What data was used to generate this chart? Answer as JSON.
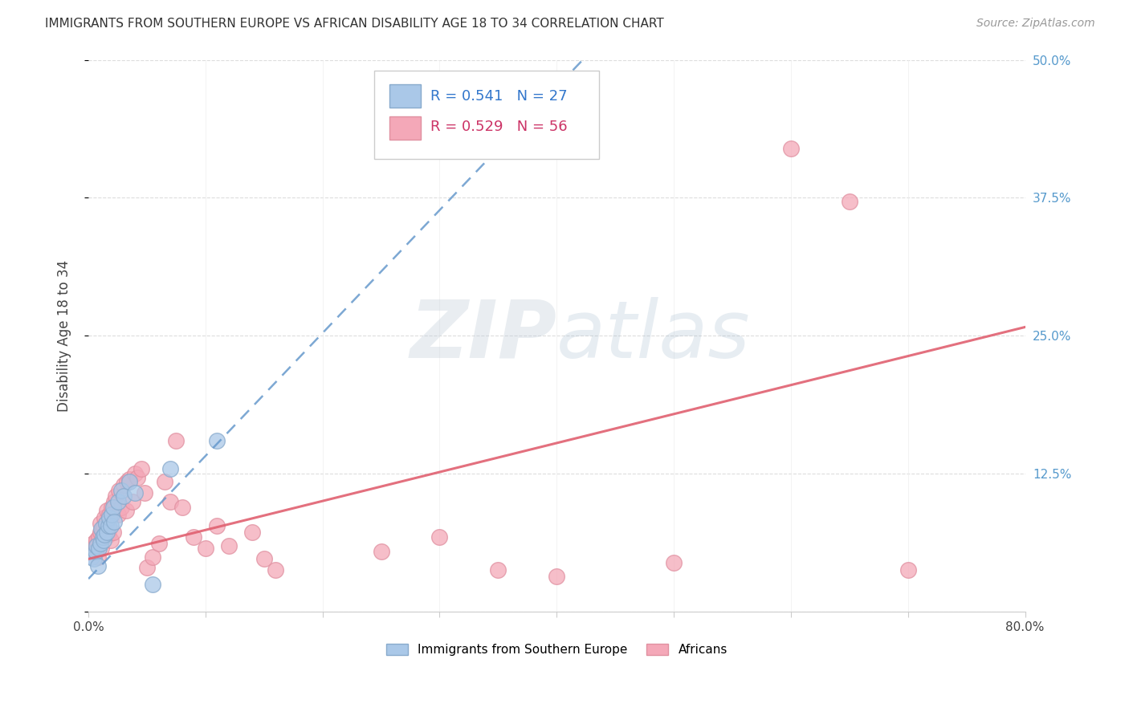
{
  "title": "IMMIGRANTS FROM SOUTHERN EUROPE VS AFRICAN DISABILITY AGE 18 TO 34 CORRELATION CHART",
  "source": "Source: ZipAtlas.com",
  "ylabel": "Disability Age 18 to 34",
  "xlim": [
    0.0,
    0.8
  ],
  "ylim": [
    0.0,
    0.5
  ],
  "xticks": [
    0.0,
    0.1,
    0.2,
    0.3,
    0.4,
    0.5,
    0.6,
    0.7,
    0.8
  ],
  "yticks": [
    0.0,
    0.125,
    0.25,
    0.375,
    0.5
  ],
  "grid_color": "#dddddd",
  "background_color": "#ffffff",
  "blue_color": "#aac8e8",
  "pink_color": "#f4a8b8",
  "blue_line_color": "#6699cc",
  "pink_line_color": "#e06070",
  "legend_R_blue": "0.541",
  "legend_N_blue": "27",
  "legend_R_pink": "0.529",
  "legend_N_pink": "56",
  "legend_label_blue": "Immigrants from Southern Europe",
  "legend_label_pink": "Africans",
  "watermark_zip": "ZIP",
  "watermark_atlas": "atlas",
  "blue_line_x0": 0.0,
  "blue_line_y0": 0.03,
  "blue_line_x1": 0.115,
  "blue_line_y1": 0.158,
  "pink_line_x0": 0.0,
  "pink_line_y0": 0.048,
  "pink_line_x1": 0.8,
  "pink_line_y1": 0.258,
  "blue_scatter_x": [
    0.003,
    0.005,
    0.006,
    0.007,
    0.008,
    0.009,
    0.01,
    0.011,
    0.012,
    0.013,
    0.014,
    0.015,
    0.016,
    0.017,
    0.018,
    0.019,
    0.02,
    0.021,
    0.022,
    0.025,
    0.028,
    0.03,
    0.035,
    0.04,
    0.055,
    0.07,
    0.11
  ],
  "blue_scatter_y": [
    0.05,
    0.048,
    0.055,
    0.06,
    0.042,
    0.058,
    0.062,
    0.075,
    0.068,
    0.065,
    0.07,
    0.08,
    0.072,
    0.078,
    0.085,
    0.078,
    0.088,
    0.095,
    0.082,
    0.1,
    0.11,
    0.105,
    0.118,
    0.108,
    0.025,
    0.13,
    0.155
  ],
  "pink_scatter_x": [
    0.003,
    0.004,
    0.005,
    0.006,
    0.007,
    0.008,
    0.009,
    0.01,
    0.01,
    0.011,
    0.012,
    0.013,
    0.014,
    0.015,
    0.016,
    0.017,
    0.018,
    0.019,
    0.02,
    0.021,
    0.022,
    0.023,
    0.025,
    0.026,
    0.028,
    0.03,
    0.032,
    0.033,
    0.035,
    0.038,
    0.04,
    0.042,
    0.045,
    0.048,
    0.05,
    0.055,
    0.06,
    0.065,
    0.07,
    0.075,
    0.08,
    0.09,
    0.1,
    0.11,
    0.12,
    0.14,
    0.15,
    0.16,
    0.25,
    0.3,
    0.35,
    0.4,
    0.5,
    0.6,
    0.65,
    0.7
  ],
  "pink_scatter_y": [
    0.058,
    0.062,
    0.055,
    0.06,
    0.065,
    0.05,
    0.068,
    0.072,
    0.08,
    0.058,
    0.075,
    0.078,
    0.085,
    0.08,
    0.092,
    0.07,
    0.088,
    0.065,
    0.095,
    0.072,
    0.1,
    0.105,
    0.088,
    0.11,
    0.095,
    0.115,
    0.092,
    0.118,
    0.12,
    0.1,
    0.125,
    0.122,
    0.13,
    0.108,
    0.04,
    0.05,
    0.062,
    0.118,
    0.1,
    0.155,
    0.095,
    0.068,
    0.058,
    0.078,
    0.06,
    0.072,
    0.048,
    0.038,
    0.055,
    0.068,
    0.038,
    0.032,
    0.045,
    0.42,
    0.372,
    0.038
  ]
}
